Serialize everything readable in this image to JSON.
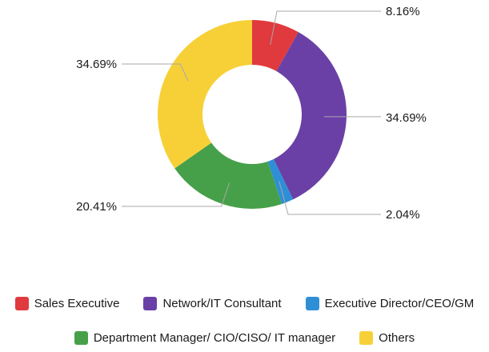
{
  "chart_data": {
    "type": "pie",
    "variant": "donut",
    "title": "",
    "legend_position": "bottom",
    "slices": [
      {
        "name": "Sales Executive",
        "value": 8.16,
        "label": "8.16%",
        "color": "#e03a3e"
      },
      {
        "name": "Network/IT Consultant",
        "value": 34.69,
        "label": "34.69%",
        "color": "#6a40a6"
      },
      {
        "name": "Executive Director/CEO/GM",
        "value": 2.04,
        "label": "2.04%",
        "color": "#2e8fd6"
      },
      {
        "name": "Department Manager/ CIO/CISO/ IT manager",
        "value": 20.41,
        "label": "20.41%",
        "color": "#46a049"
      },
      {
        "name": "Others",
        "value": 34.69,
        "label": "34.69%",
        "color": "#f7d038"
      }
    ]
  }
}
